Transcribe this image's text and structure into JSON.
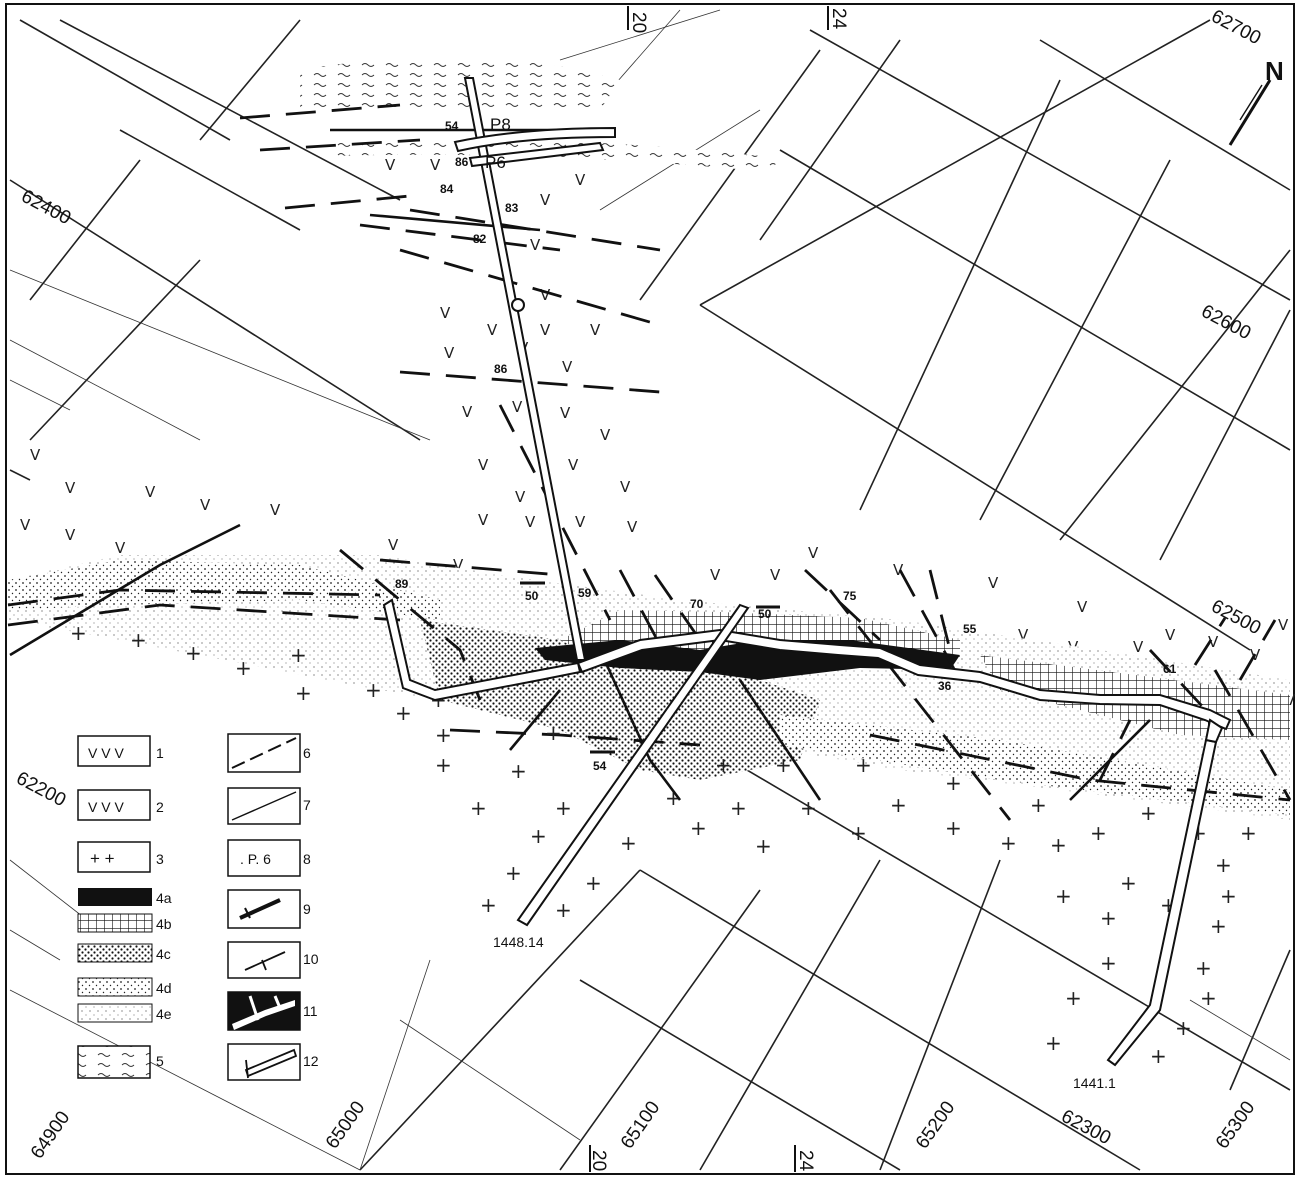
{
  "map": {
    "north_arrow": "N",
    "grid_labels_east": [
      "62700",
      "62600",
      "62500"
    ],
    "grid_labels_west": [
      "62400",
      "62200"
    ],
    "grid_labels_bottom": [
      "64900",
      "65000",
      "65100",
      "65200",
      "62300",
      "65300"
    ],
    "top_edge_labels": [
      "20",
      "24"
    ],
    "bottom_edge_labels": [
      "20",
      "24"
    ],
    "points": [
      "P8",
      "P6"
    ],
    "dips_upper": [
      "54",
      "86",
      "84",
      "83",
      "82",
      "86"
    ],
    "dips_lower": [
      "89",
      "50",
      "59",
      "70",
      "50",
      "75",
      "55",
      "36",
      "61",
      "54"
    ],
    "drill_holes": [
      "1448.14",
      "1441.1"
    ]
  },
  "legend": {
    "items": [
      {
        "symbol": "V V V",
        "label": "1"
      },
      {
        "symbol": "V V V",
        "label": "2"
      },
      {
        "symbol": "+ +",
        "label": "3"
      },
      {
        "symbol": "",
        "label": "4a"
      },
      {
        "symbol": "",
        "label": "4b"
      },
      {
        "symbol": "",
        "label": "4c"
      },
      {
        "symbol": "",
        "label": "4d"
      },
      {
        "symbol": "",
        "label": "4e"
      },
      {
        "symbol": "",
        "label": "5"
      },
      {
        "symbol": "",
        "label": "6"
      },
      {
        "symbol": "",
        "label": "7"
      },
      {
        "symbol": ". P. 6",
        "label": "8"
      },
      {
        "symbol": "",
        "label": "9"
      },
      {
        "symbol": "",
        "label": "10"
      },
      {
        "symbol": "",
        "label": "11"
      },
      {
        "symbol": "",
        "label": "12"
      }
    ]
  }
}
